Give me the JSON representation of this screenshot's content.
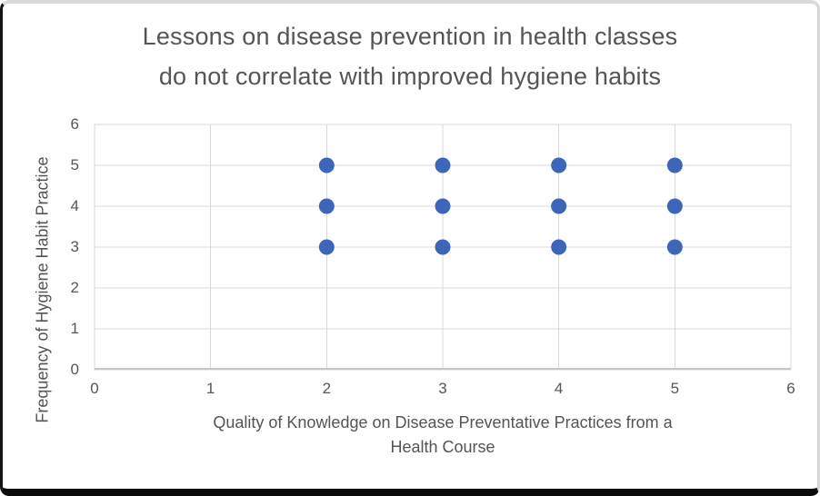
{
  "chart_data": {
    "type": "scatter",
    "title": "Lessons on disease prevention in health classes do not correlate with improved hygiene habits",
    "title_lines": [
      "Lessons on disease prevention in health classes",
      "do not correlate with improved hygiene habits"
    ],
    "xlabel": "Quality of Knowledge on Disease Preventative Practices from a Health Course",
    "xlabel_lines": [
      "Quality of Knowledge on Disease Preventative Practices from a",
      "Health Course"
    ],
    "ylabel": "Frequency of Hygiene Habit Practice",
    "xlim": [
      0,
      6
    ],
    "ylim": [
      0,
      6
    ],
    "x_ticks": [
      0,
      1,
      2,
      3,
      4,
      5,
      6
    ],
    "y_ticks": [
      0,
      1,
      2,
      3,
      4,
      5,
      6
    ],
    "grid": true,
    "legend": "none",
    "points": [
      [
        2,
        3
      ],
      [
        2,
        4
      ],
      [
        2,
        5
      ],
      [
        3,
        3
      ],
      [
        3,
        4
      ],
      [
        3,
        5
      ],
      [
        4,
        3
      ],
      [
        4,
        4
      ],
      [
        4,
        5
      ],
      [
        5,
        3
      ],
      [
        5,
        4
      ],
      [
        5,
        5
      ]
    ],
    "marker": {
      "shape": "circle",
      "radius_px": 8.5,
      "color": "#3D66BB"
    },
    "colors": {
      "gridline": "#D9D9D9",
      "axis_line": "#C6C6C6",
      "title_text": "#555555",
      "tick_text": "#565656",
      "background": "#FFFFFF"
    }
  }
}
